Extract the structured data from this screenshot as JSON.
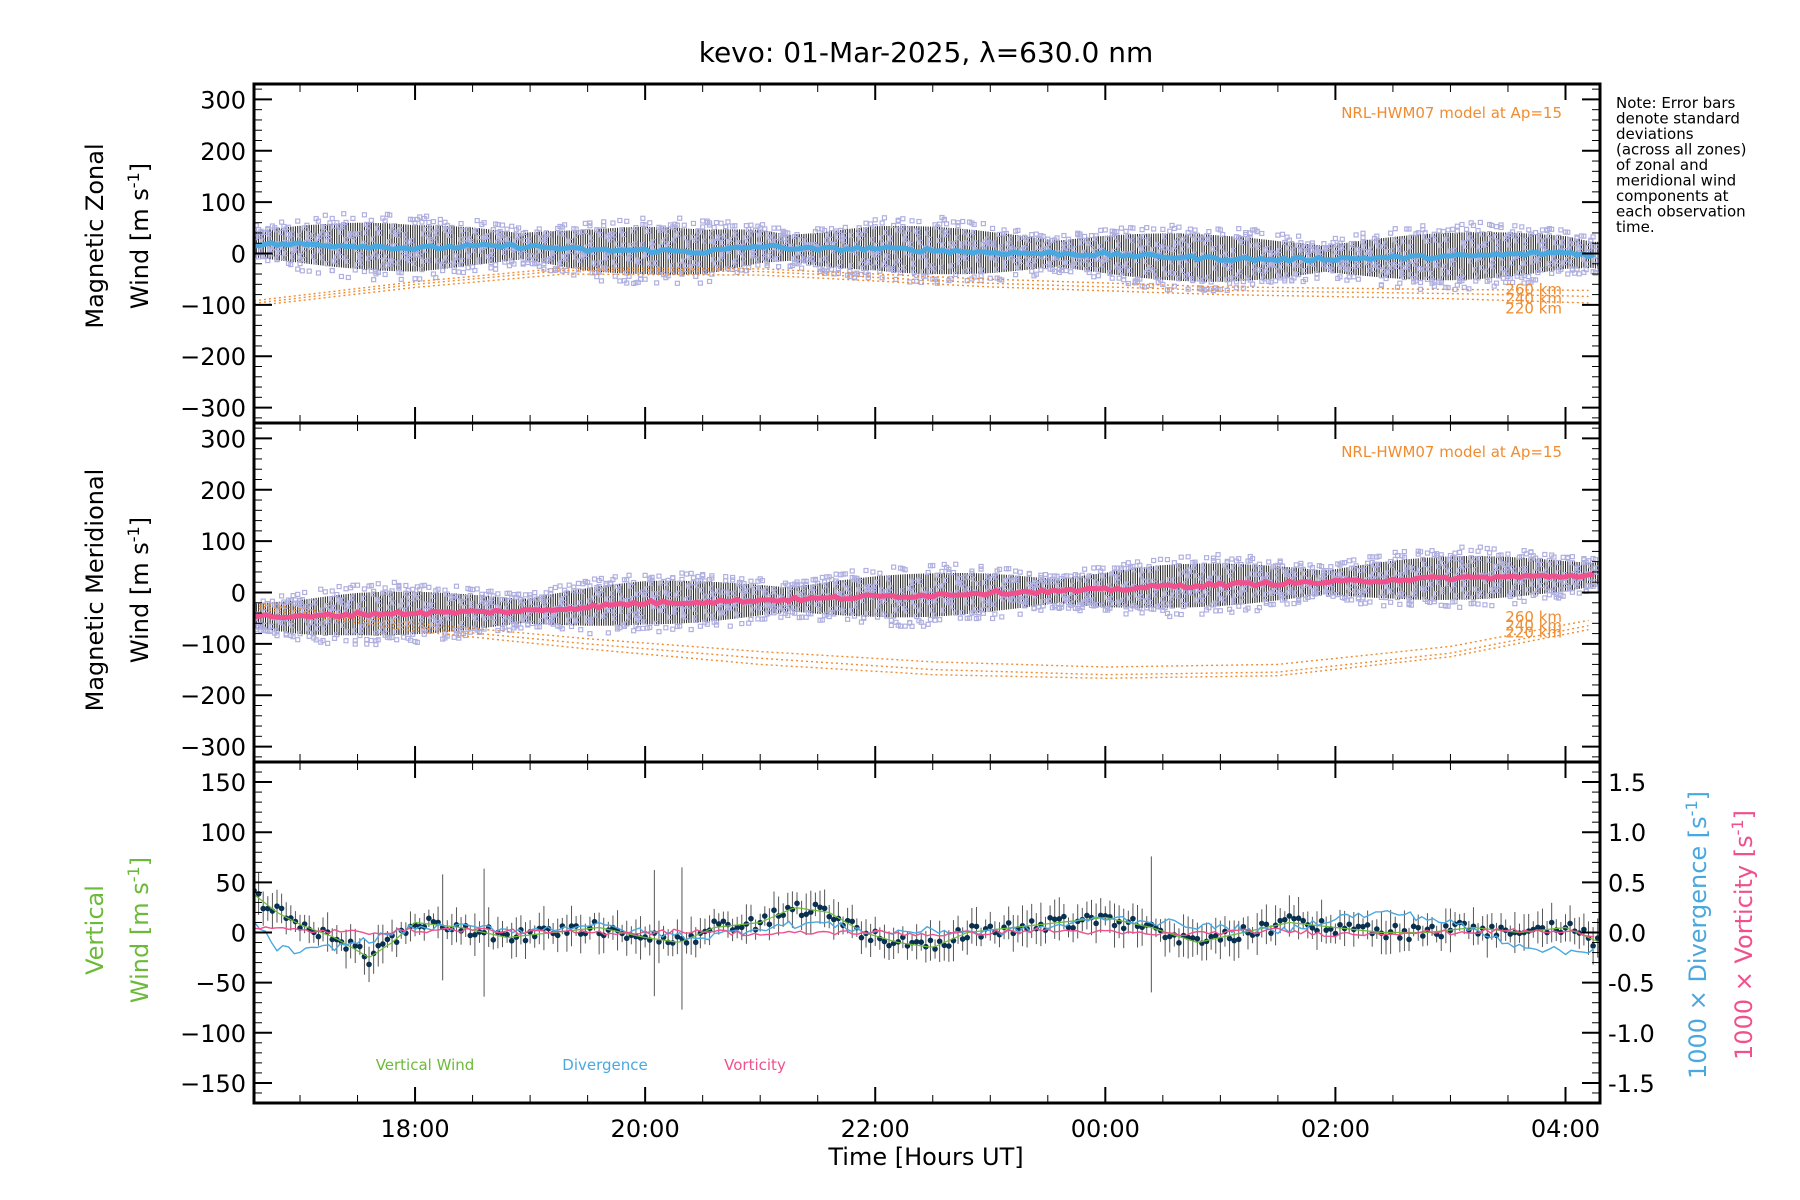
{
  "figure": {
    "title": "kevo: 01-Mar-2025, λ=630.0 nm",
    "xlabel": "Time [Hours UT]",
    "note": [
      "Note: Error bars",
      "denote standard",
      "deviations",
      "(across all zones)",
      "of zonal and",
      "meridional wind",
      "components at",
      "each observation",
      "time."
    ],
    "colors": {
      "zonal": "#4aa8e0",
      "meridional": "#f0508c",
      "vertical": "#6dba3a",
      "divergence": "#4aa8e0",
      "vorticity": "#f0508c",
      "model": "#f08c30",
      "zone_scatter": "#b0b0e0",
      "errorbar": "#202020"
    }
  },
  "chart_data": [
    {
      "type": "line",
      "panel": "zonal",
      "ylabel_line1": "Magnetic Zonal",
      "ylabel_line2": "Wind [m s",
      "ylabel_sup": "-1",
      "ylabel_close": "]",
      "ylim": [
        -330,
        330
      ],
      "yticks": [
        300,
        200,
        100,
        0,
        -100,
        -200,
        -300
      ],
      "model_label": "NRL-HWM07 model at Ap=15",
      "model_heights": [
        "260 km",
        "240 km",
        "220 km"
      ],
      "series": [
        {
          "name": "Zonal wind",
          "x": [
            16.6,
            17.0,
            17.5,
            18.0,
            18.5,
            19.0,
            19.5,
            20.0,
            20.5,
            21.0,
            21.5,
            22.0,
            22.5,
            23.0,
            23.5,
            24.0,
            24.5,
            25.0,
            25.5,
            26.0,
            26.5,
            27.0,
            27.5,
            28.0,
            28.3
          ],
          "values": [
            18,
            18,
            15,
            10,
            14,
            14,
            6,
            6,
            3,
            14,
            8,
            10,
            6,
            2,
            0,
            -2,
            -6,
            -10,
            -12,
            -10,
            -8,
            -6,
            -2,
            2,
            -4
          ]
        }
      ],
      "model": [
        {
          "height": "260 km",
          "x": [
            16.6,
            18.0,
            19.3,
            21.0,
            23.0,
            25.0,
            27.0,
            28.3
          ],
          "values": [
            -92,
            -55,
            -28,
            -30,
            -50,
            -65,
            -70,
            -72
          ]
        },
        {
          "height": "240 km",
          "x": [
            16.6,
            18.0,
            19.3,
            21.0,
            23.0,
            25.0,
            27.0,
            28.3
          ],
          "values": [
            -97,
            -60,
            -33,
            -35,
            -58,
            -72,
            -78,
            -84
          ]
        },
        {
          "height": "220 km",
          "x": [
            16.6,
            18.0,
            19.3,
            21.0,
            23.0,
            25.0,
            27.0,
            28.3
          ],
          "values": [
            -102,
            -66,
            -40,
            -42,
            -65,
            -80,
            -88,
            -97
          ]
        }
      ]
    },
    {
      "type": "line",
      "panel": "meridional",
      "ylabel_line1": "Magnetic Meridional",
      "ylabel_line2": "Wind [m s",
      "ylabel_sup": "-1",
      "ylabel_close": "]",
      "ylim": [
        -330,
        330
      ],
      "yticks": [
        300,
        200,
        100,
        0,
        -100,
        -200,
        -300
      ],
      "model_label": "NRL-HWM07 model at Ap=15",
      "model_heights": [
        "260 km",
        "240 km",
        "220 km"
      ],
      "series": [
        {
          "name": "Meridional wind",
          "x": [
            16.6,
            17.0,
            17.5,
            18.0,
            18.5,
            19.0,
            19.5,
            20.0,
            20.5,
            21.0,
            21.5,
            22.0,
            22.5,
            23.0,
            23.5,
            24.0,
            24.5,
            25.0,
            25.5,
            26.0,
            26.5,
            27.0,
            27.5,
            28.0,
            28.3
          ],
          "values": [
            -45,
            -48,
            -42,
            -40,
            -38,
            -36,
            -28,
            -20,
            -18,
            -15,
            -12,
            -8,
            -5,
            0,
            2,
            5,
            12,
            15,
            18,
            20,
            25,
            28,
            30,
            32,
            35
          ]
        }
      ],
      "model": [
        {
          "height": "260 km",
          "x": [
            16.6,
            18.0,
            19.5,
            21.0,
            22.5,
            24.0,
            25.5,
            27.0,
            28.3
          ],
          "values": [
            -20,
            -60,
            -90,
            -115,
            -135,
            -145,
            -140,
            -105,
            -50
          ]
        },
        {
          "height": "240 km",
          "x": [
            16.6,
            18.0,
            19.5,
            21.0,
            22.5,
            24.0,
            25.5,
            27.0,
            28.3
          ],
          "values": [
            -25,
            -68,
            -100,
            -128,
            -150,
            -160,
            -155,
            -118,
            -60
          ]
        },
        {
          "height": "220 km",
          "x": [
            16.6,
            18.0,
            19.5,
            21.0,
            22.5,
            24.0,
            25.5,
            27.0,
            28.3
          ],
          "values": [
            -30,
            -75,
            -110,
            -140,
            -160,
            -167,
            -162,
            -125,
            -68
          ]
        }
      ]
    },
    {
      "type": "line",
      "panel": "vertical",
      "ylabel_line1": "Vertical",
      "ylabel_line2": "Wind [m s",
      "ylabel_sup": "-1",
      "ylabel_close": "]",
      "ylim": [
        -170,
        170
      ],
      "yticks": [
        150,
        100,
        50,
        0,
        -50,
        -100,
        -150
      ],
      "y2label_div": "1000 × Divergence [s",
      "y2label_vor": "1000 × Vorticity [s",
      "y2label_sup": "-1",
      "y2label_close": "]",
      "y2lim": [
        -1.7,
        1.7
      ],
      "y2ticks": [
        1.5,
        1.0,
        0.5,
        0.0,
        -0.5,
        -1.0,
        -1.5
      ],
      "legend": [
        "Vertical Wind",
        "Divergence",
        "Vorticity"
      ],
      "series": [
        {
          "name": "Vertical Wind",
          "x": [
            16.6,
            16.8,
            17.0,
            17.3,
            17.6,
            17.8,
            18.0,
            18.4,
            18.8,
            19.2,
            19.6,
            20.0,
            20.3,
            20.6,
            21.0,
            21.3,
            21.6,
            21.9,
            22.2,
            22.5,
            22.8,
            23.2,
            23.6,
            24.0,
            24.4,
            24.8,
            25.2,
            25.6,
            26.0,
            26.4,
            26.8,
            27.2,
            27.6,
            28.0,
            28.3
          ],
          "values": [
            38,
            20,
            8,
            -5,
            -25,
            -10,
            10,
            5,
            -5,
            0,
            5,
            -5,
            -10,
            5,
            10,
            25,
            20,
            0,
            -10,
            -15,
            0,
            5,
            10,
            15,
            5,
            -10,
            0,
            10,
            5,
            0,
            0,
            5,
            0,
            5,
            -10
          ]
        },
        {
          "name": "Divergence",
          "x": [
            16.6,
            16.8,
            17.0,
            17.5,
            18.0,
            18.5,
            19.0,
            19.5,
            20.0,
            20.5,
            21.0,
            21.5,
            22.0,
            22.5,
            23.0,
            23.5,
            24.0,
            24.5,
            25.0,
            25.5,
            26.0,
            26.5,
            27.0,
            27.5,
            28.0,
            28.3
          ],
          "values": [
            0.1,
            -0.15,
            -0.2,
            -0.1,
            0.05,
            0.05,
            0.02,
            0.08,
            0.0,
            -0.05,
            0.05,
            0.1,
            0.0,
            0.02,
            0.0,
            0.05,
            0.15,
            0.1,
            0.05,
            0.0,
            0.15,
            0.2,
            0.1,
            -0.1,
            -0.2,
            -0.15
          ]
        },
        {
          "name": "Vorticity",
          "x": [
            16.6,
            17.0,
            17.5,
            18.0,
            18.5,
            19.0,
            19.5,
            20.0,
            20.5,
            21.0,
            21.5,
            22.0,
            22.5,
            23.0,
            23.5,
            24.0,
            24.5,
            25.0,
            25.5,
            26.0,
            26.5,
            27.0,
            27.5,
            28.0,
            28.3
          ],
          "values": [
            0.05,
            0.02,
            0.0,
            0.02,
            0.03,
            0.0,
            0.0,
            0.0,
            0.02,
            -0.02,
            0.0,
            0.0,
            -0.02,
            0.0,
            0.02,
            0.0,
            -0.02,
            0.0,
            0.02,
            -0.02,
            0.0,
            0.0,
            0.02,
            0.0,
            -0.02
          ]
        }
      ]
    }
  ],
  "x_axis": {
    "range": [
      16.6,
      28.3
    ],
    "ticks": [
      18,
      20,
      22,
      24,
      26,
      28
    ],
    "ticklabels": [
      "18:00",
      "20:00",
      "22:00",
      "00:00",
      "02:00",
      "04:00"
    ]
  }
}
